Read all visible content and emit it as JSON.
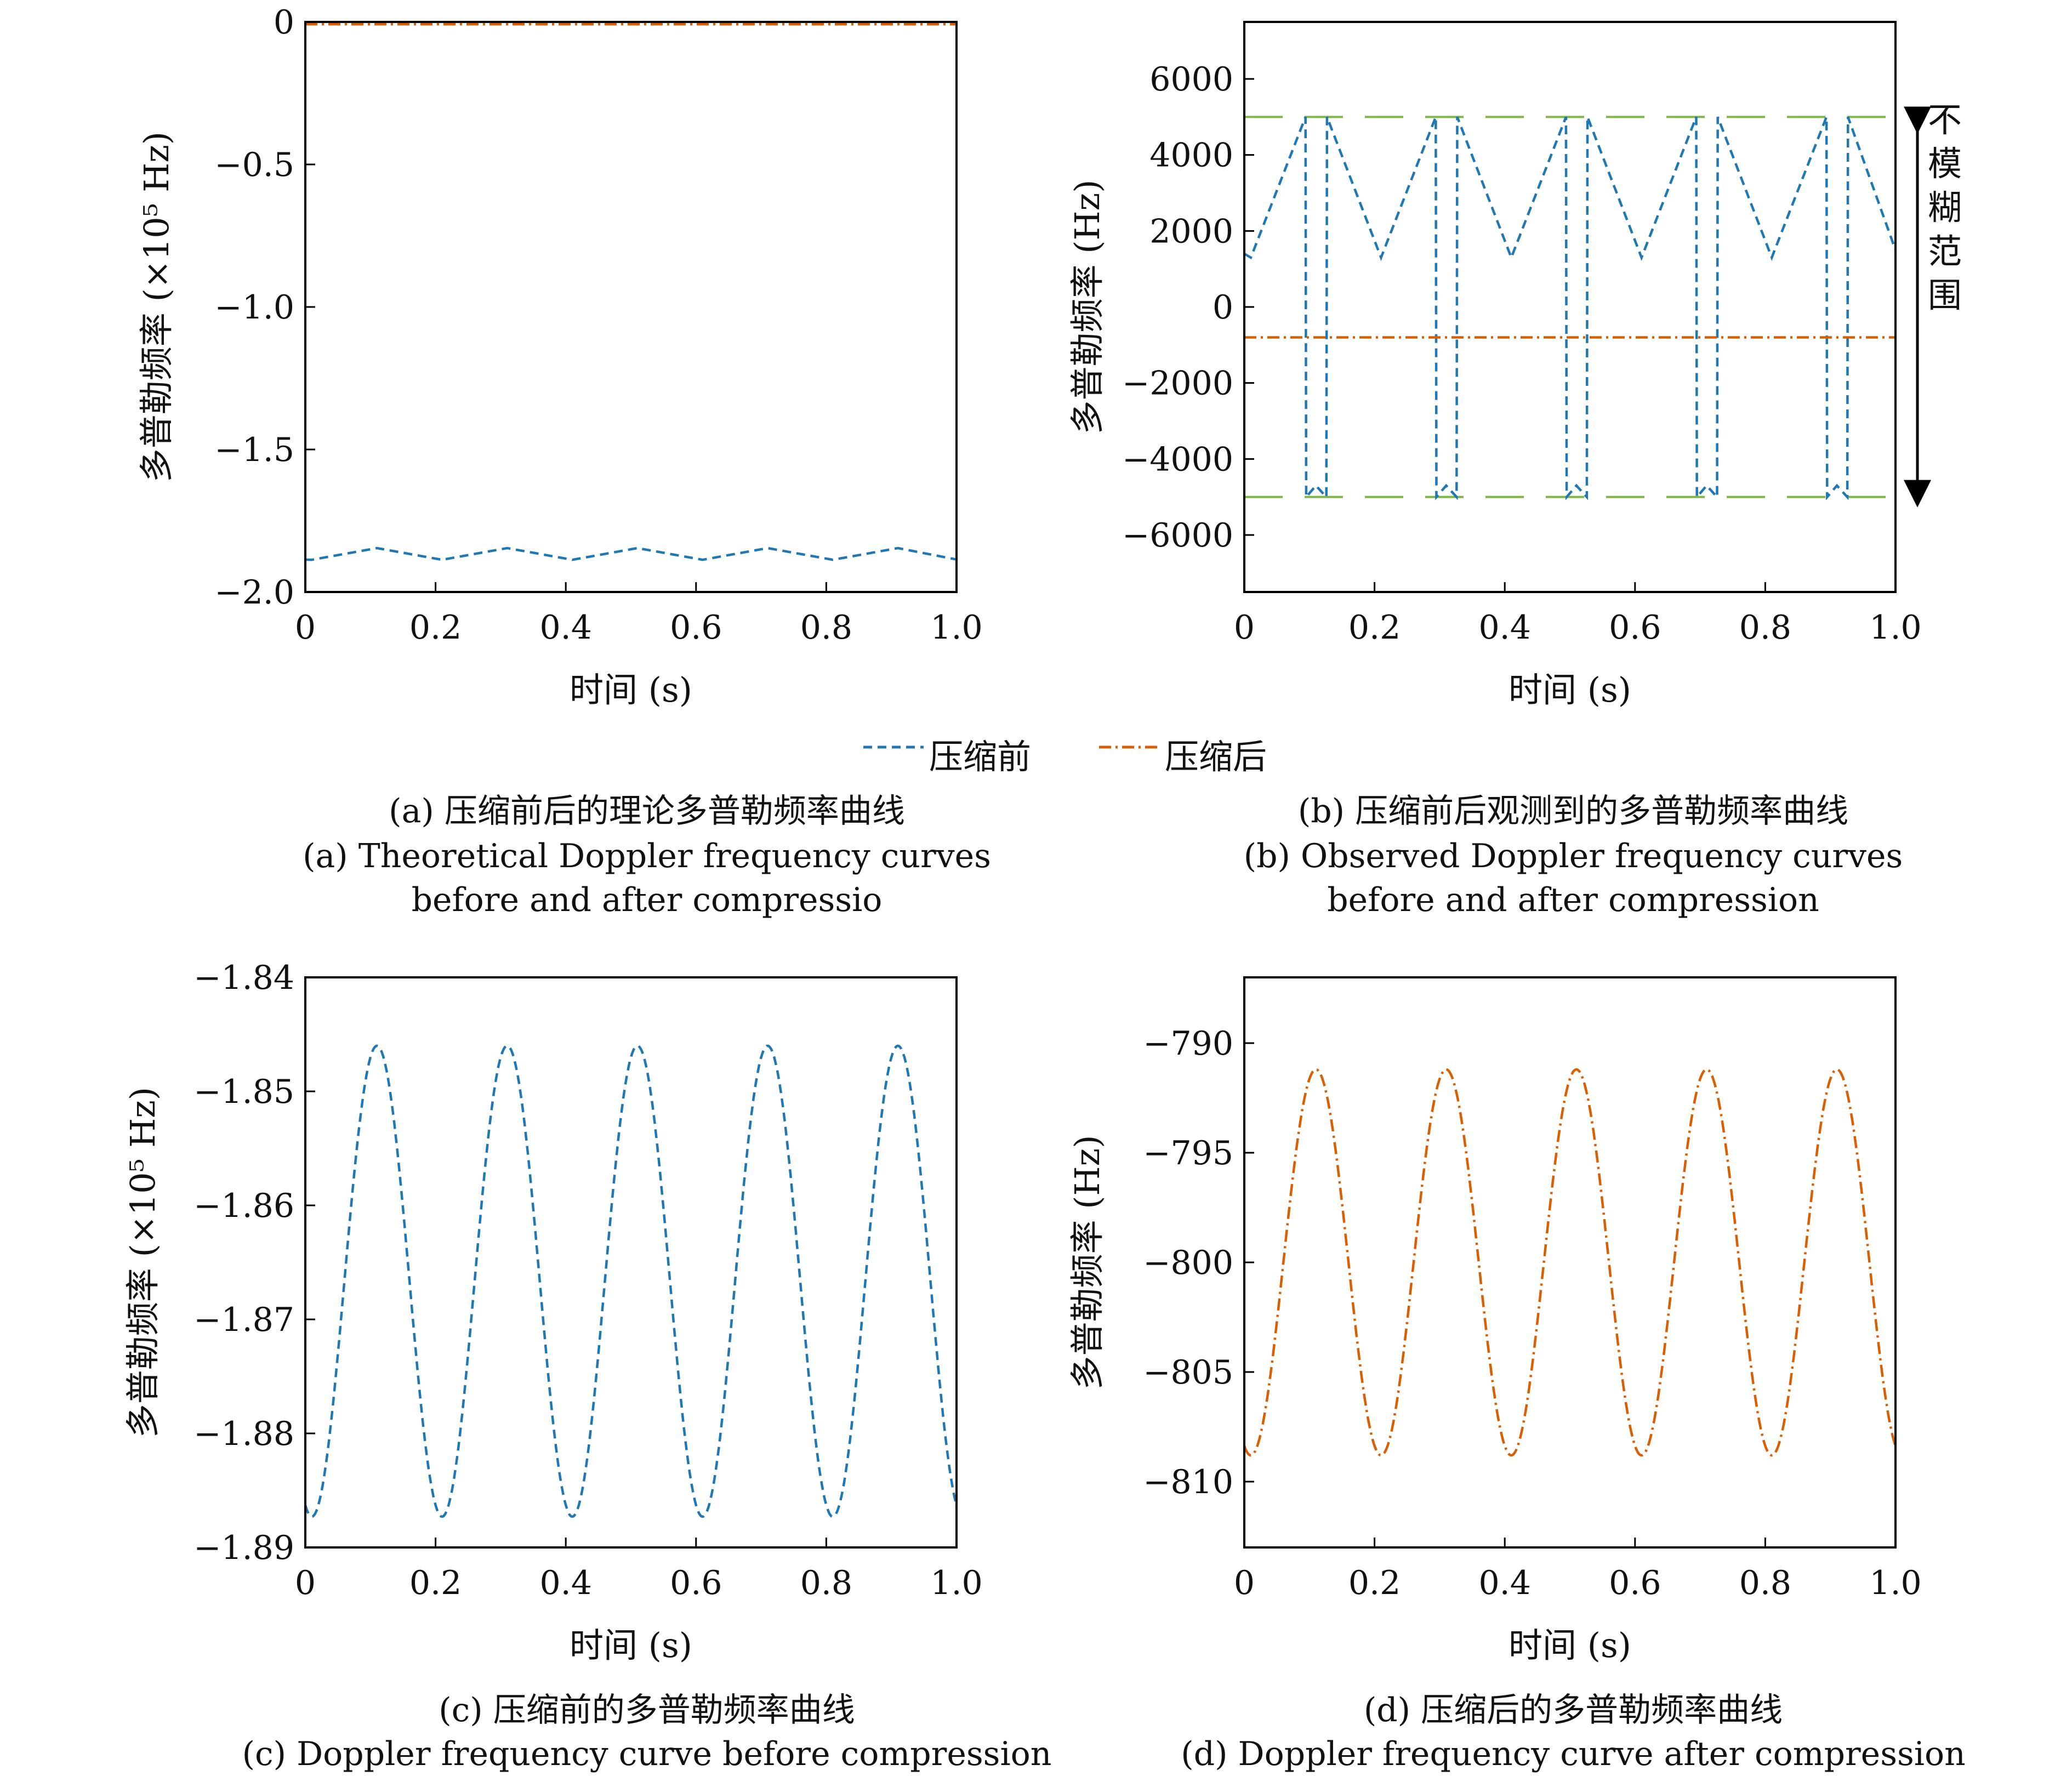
{
  "colors": {
    "before": "#1f77b4",
    "after": "#d95f02",
    "ambiguity": "#7fb646",
    "axis": "#000000"
  },
  "legend": {
    "before": "压缩前",
    "after": "压缩后"
  },
  "panels": [
    {
      "id": "a",
      "caption_cn": "(a) 压缩前后的理论多普勒频率曲线",
      "caption_en_1": "(a) Theoretical Doppler frequency curves",
      "caption_en_2": "before and after compressio",
      "xlabel": "时间 (s)",
      "ylabel": "多普勒频率 (×10⁵ Hz)",
      "xticks": [
        "0",
        "0.2",
        "0.4",
        "0.6",
        "0.8",
        "1.0"
      ],
      "yticks": [
        "0",
        "−0.5",
        "−1.0",
        "−1.5",
        "−2.0"
      ]
    },
    {
      "id": "b",
      "caption_cn": "(b) 压缩前后观测到的多普勒频率曲线",
      "caption_en_1": "(b) Observed Doppler frequency curves",
      "caption_en_2": "before and after compression",
      "xlabel": "时间 (s)",
      "ylabel": "多普勒频率 (Hz)",
      "xticks": [
        "0",
        "0.2",
        "0.4",
        "0.6",
        "0.8",
        "1.0"
      ],
      "yticks": [
        "6000",
        "4000",
        "2000",
        "0",
        "−2000",
        "−4000",
        "−6000"
      ],
      "annotation": "不模糊范围"
    },
    {
      "id": "c",
      "caption_cn": "(c) 压缩前的多普勒频率曲线",
      "caption_en_1": "(c) Doppler frequency curve before compression",
      "xlabel": "时间 (s)",
      "ylabel": "多普勒频率 (×10⁵ Hz)",
      "xticks": [
        "0",
        "0.2",
        "0.4",
        "0.6",
        "0.8",
        "1.0"
      ],
      "yticks": [
        "−1.84",
        "−1.85",
        "−1.86",
        "−1.87",
        "−1.88",
        "−1.89"
      ]
    },
    {
      "id": "d",
      "caption_cn": "(d) 压缩后的多普勒频率曲线",
      "caption_en_1": "(d) Doppler frequency curve after compression",
      "xlabel": "时间 (s)",
      "ylabel": "多普勒频率 (Hz)",
      "xticks": [
        "0",
        "0.2",
        "0.4",
        "0.6",
        "0.8",
        "1.0"
      ],
      "yticks": [
        "−790",
        "−795",
        "−800",
        "−805",
        "−810"
      ]
    }
  ],
  "chart_data": [
    {
      "panel": "a",
      "type": "line",
      "xlim": [
        0,
        1.0
      ],
      "ylim": [
        -2.0,
        0
      ],
      "grid": false,
      "series": [
        {
          "name": "压缩前",
          "style": "dashed",
          "x": [
            0,
            0.01,
            0.11,
            0.21,
            0.31,
            0.41,
            0.51,
            0.61,
            0.71,
            0.81,
            0.91,
            1.0
          ],
          "y": [
            -1.8865,
            -1.887,
            -1.846,
            -1.887,
            -1.846,
            -1.887,
            -1.846,
            -1.887,
            -1.846,
            -1.887,
            -1.846,
            -1.886
          ]
        },
        {
          "name": "压缩后",
          "style": "dashdot",
          "x": [
            0,
            1.0
          ],
          "y": [
            -0.008,
            -0.008
          ]
        }
      ]
    },
    {
      "panel": "b",
      "type": "line",
      "xlim": [
        0,
        1.0
      ],
      "ylim": [
        -7500,
        7500
      ],
      "grid": false,
      "ambiguity_limits": [
        5000,
        -5000
      ],
      "series": [
        {
          "name": "压缩前",
          "style": "dashed",
          "x": [
            0,
            0.01,
            0.094,
            0.095,
            0.11,
            0.126,
            0.127,
            0.21,
            0.294,
            0.295,
            0.31,
            0.326,
            0.327,
            0.41,
            0.494,
            0.495,
            0.51,
            0.526,
            0.527,
            0.61,
            0.694,
            0.695,
            0.71,
            0.726,
            0.727,
            0.81,
            0.894,
            0.895,
            0.91,
            0.926,
            0.927,
            1.0
          ],
          "y": [
            1400,
            1300,
            5000,
            -5000,
            -4700,
            -5000,
            5000,
            1300,
            5000,
            -5000,
            -4700,
            -5000,
            5000,
            1300,
            5000,
            -5000,
            -4700,
            -5000,
            5000,
            1300,
            5000,
            -5000,
            -4700,
            -5000,
            5000,
            1300,
            5000,
            -5000,
            -4700,
            -5000,
            5000,
            1500
          ]
        },
        {
          "name": "压缩后",
          "style": "dashdot",
          "x": [
            0,
            1.0
          ],
          "y": [
            -800,
            -800
          ]
        }
      ]
    },
    {
      "panel": "c",
      "type": "line",
      "xlim": [
        0,
        1.0
      ],
      "ylim": [
        -1.89,
        -1.84
      ],
      "grid": false,
      "series": [
        {
          "name": "压缩前",
          "style": "dashed",
          "period": 0.2,
          "peak_x": 0.11,
          "max": -1.846,
          "min": -1.8873
        }
      ]
    },
    {
      "panel": "d",
      "type": "line",
      "xlim": [
        0,
        1.0
      ],
      "ylim": [
        -813,
        -787
      ],
      "grid": false,
      "series": [
        {
          "name": "压缩后",
          "style": "dashdot",
          "period": 0.2,
          "peak_x": 0.11,
          "max": -791.2,
          "min": -808.8
        }
      ]
    }
  ]
}
